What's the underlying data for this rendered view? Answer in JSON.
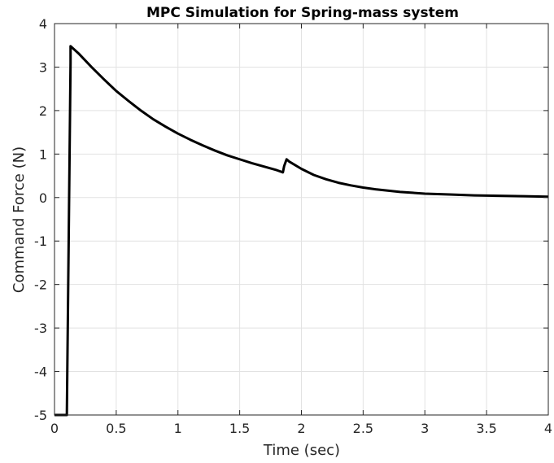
{
  "chart_data": {
    "type": "line",
    "title": "MPC Simulation for Spring-mass system",
    "xlabel": "Time (sec)",
    "ylabel": "Command Force (N)",
    "xlim": [
      0,
      4
    ],
    "ylim": [
      -5,
      4
    ],
    "xticks": [
      0,
      0.5,
      1,
      1.5,
      2,
      2.5,
      3,
      3.5,
      4
    ],
    "xtick_labels": [
      "0",
      "0.5",
      "1",
      "1.5",
      "2",
      "2.5",
      "3",
      "3.5",
      "4"
    ],
    "yticks": [
      -5,
      -4,
      -3,
      -2,
      -1,
      0,
      1,
      2,
      3,
      4
    ],
    "ytick_labels": [
      "-5",
      "-4",
      "-3",
      "-2",
      "-1",
      "0",
      "1",
      "2",
      "3",
      "4"
    ],
    "grid": true,
    "line_color": "#000000",
    "series": [
      {
        "x": [
          0,
          0.1,
          0.1,
          0.13,
          0.13,
          0.2,
          0.3,
          0.4,
          0.5,
          0.6,
          0.7,
          0.8,
          0.9,
          1.0,
          1.1,
          1.2,
          1.3,
          1.4,
          1.5,
          1.6,
          1.7,
          1.8,
          1.85,
          1.86,
          1.88,
          1.9,
          2.0,
          2.1,
          2.2,
          2.3,
          2.4,
          2.5,
          2.6,
          2.7,
          2.8,
          2.9,
          3.0,
          3.2,
          3.4,
          3.6,
          3.8,
          4.0
        ],
        "y": [
          -5,
          -5,
          -5,
          3.1,
          3.48,
          3.3,
          3.0,
          2.72,
          2.45,
          2.22,
          2.0,
          1.8,
          1.63,
          1.47,
          1.33,
          1.2,
          1.08,
          0.97,
          0.88,
          0.79,
          0.71,
          0.63,
          0.58,
          0.72,
          0.88,
          0.83,
          0.66,
          0.52,
          0.42,
          0.34,
          0.28,
          0.23,
          0.19,
          0.16,
          0.13,
          0.11,
          0.09,
          0.07,
          0.05,
          0.04,
          0.03,
          0.02
        ]
      }
    ]
  }
}
